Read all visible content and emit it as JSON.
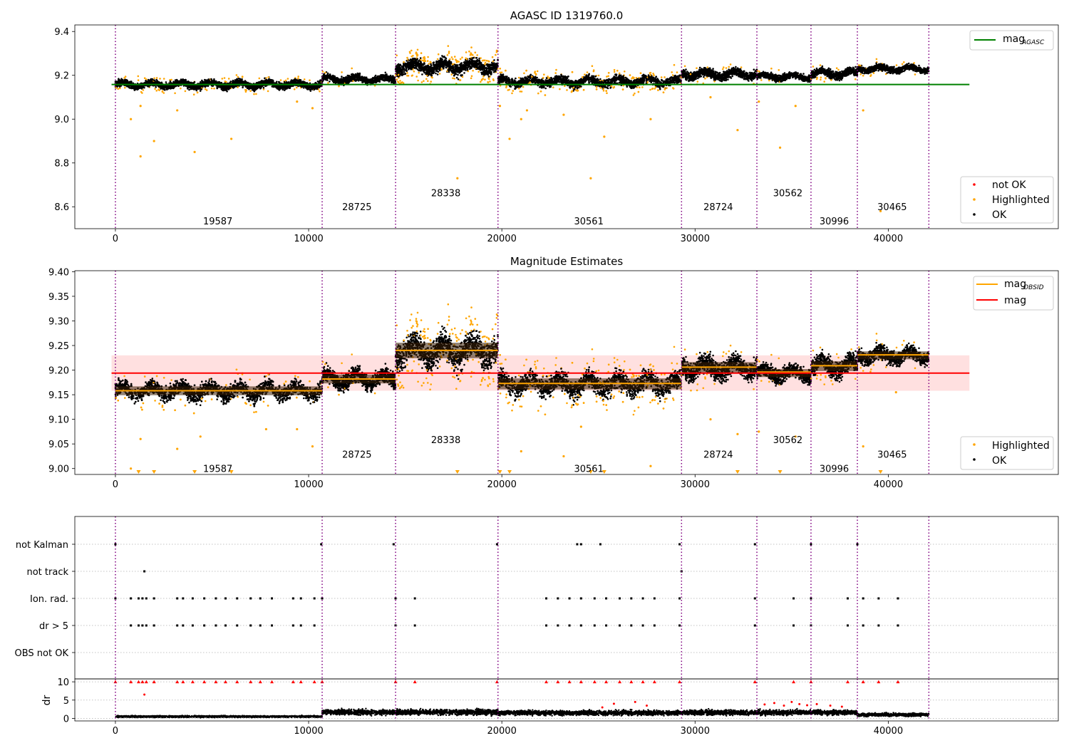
{
  "chart_data": [
    {
      "id": "p1",
      "type": "scatter",
      "title": "AGASC ID 1319760.0",
      "xlim": [
        -2100,
        48800
      ],
      "ylim": [
        8.5,
        9.43
      ],
      "xticks": [
        0,
        10000,
        20000,
        30000,
        40000
      ],
      "xtick_labels": [
        "0",
        "10000",
        "20000",
        "30000",
        "40000"
      ],
      "yticks": [
        8.6,
        8.8,
        9.0,
        9.2,
        9.4
      ],
      "ytick_labels": [
        "8.6",
        "8.8",
        "9.0",
        "9.2",
        "9.4"
      ],
      "hline": {
        "name": "mag_AGASC",
        "y": 9.158,
        "x_range": [
          -200,
          44200
        ],
        "color": "#008000"
      },
      "legend_lines": [
        {
          "label": "mag",
          "sub": "AGASC",
          "color": "#008000"
        }
      ],
      "legend_markers": [
        {
          "label": "not OK",
          "color": "#ff0000"
        },
        {
          "label": "Highlighted",
          "color": "#ffa500"
        },
        {
          "label": "OK",
          "color": "#000000"
        }
      ],
      "obsid_labels": [
        {
          "text": "19587",
          "x": 5300,
          "y": 8.535
        },
        {
          "text": "28725",
          "x": 12500,
          "y": 8.6
        },
        {
          "text": "28338",
          "x": 17100,
          "y": 8.665
        },
        {
          "text": "30561",
          "x": 24500,
          "y": 8.535
        },
        {
          "text": "28724",
          "x": 31200,
          "y": 8.6
        },
        {
          "text": "30562",
          "x": 34800,
          "y": 8.665
        },
        {
          "text": "30996",
          "x": 37200,
          "y": 8.535
        },
        {
          "text": "30465",
          "x": 40200,
          "y": 8.6
        }
      ],
      "outliers": [
        [
          800,
          9.0
        ],
        [
          1300,
          8.83
        ],
        [
          2000,
          8.9
        ],
        [
          4100,
          8.85
        ],
        [
          6000,
          8.91
        ],
        [
          1300,
          9.06
        ],
        [
          3200,
          9.04
        ],
        [
          9400,
          9.08
        ],
        [
          10200,
          9.05
        ],
        [
          17700,
          8.73
        ],
        [
          19900,
          9.06
        ],
        [
          20400,
          8.91
        ],
        [
          21000,
          9.0
        ],
        [
          24600,
          8.73
        ],
        [
          25300,
          8.92
        ],
        [
          27700,
          9.0
        ],
        [
          30800,
          9.1
        ],
        [
          32200,
          8.95
        ],
        [
          33300,
          9.08
        ],
        [
          34400,
          8.87
        ],
        [
          35200,
          9.06
        ],
        [
          38700,
          9.04
        ],
        [
          39600,
          8.58
        ],
        [
          23200,
          9.02
        ],
        [
          21300,
          9.04
        ]
      ]
    },
    {
      "id": "p2",
      "type": "scatter",
      "title": "Magnitude Estimates",
      "xlim": [
        -2100,
        48800
      ],
      "ylim": [
        8.988,
        9.402
      ],
      "xticks": [
        0,
        10000,
        20000,
        30000,
        40000
      ],
      "xtick_labels": [
        "0",
        "10000",
        "20000",
        "30000",
        "40000"
      ],
      "yticks": [
        9.0,
        9.05,
        9.1,
        9.15,
        9.2,
        9.25,
        9.3,
        9.35,
        9.4
      ],
      "ytick_labels": [
        "9.00",
        "9.05",
        "9.10",
        "9.15",
        "9.20",
        "9.25",
        "9.30",
        "9.35",
        "9.40"
      ],
      "mag": 9.194,
      "mag_band": [
        9.158,
        9.23
      ],
      "mag_x_range": [
        -200,
        44200
      ],
      "legend_lines": [
        {
          "label": "mag",
          "sub": "OBSID",
          "color": "#ffa500"
        },
        {
          "label": "mag",
          "sub": "",
          "color": "#ff0000"
        }
      ],
      "legend_markers": [
        {
          "label": "Highlighted",
          "color": "#ffa500"
        },
        {
          "label": "OK",
          "color": "#000000"
        }
      ],
      "obsid_labels": [
        {
          "text": "19587",
          "x": 5300,
          "y": 9.0
        },
        {
          "text": "28725",
          "x": 12500,
          "y": 9.029
        },
        {
          "text": "28338",
          "x": 17100,
          "y": 9.059
        },
        {
          "text": "30561",
          "x": 24500,
          "y": 9.0
        },
        {
          "text": "28724",
          "x": 31200,
          "y": 9.029
        },
        {
          "text": "30562",
          "x": 34800,
          "y": 9.059
        },
        {
          "text": "30996",
          "x": 37200,
          "y": 9.0
        },
        {
          "text": "30465",
          "x": 40200,
          "y": 9.029
        }
      ],
      "outliers": [
        [
          1300,
          9.06
        ],
        [
          3200,
          9.04
        ],
        [
          4400,
          9.065
        ],
        [
          7800,
          9.08
        ],
        [
          9400,
          9.08
        ],
        [
          10200,
          9.045
        ],
        [
          21000,
          9.035
        ],
        [
          23200,
          9.025
        ],
        [
          24100,
          9.085
        ],
        [
          27700,
          9.005
        ],
        [
          30800,
          9.1
        ],
        [
          32200,
          9.07
        ],
        [
          33300,
          9.075
        ],
        [
          35200,
          9.065
        ],
        [
          38700,
          9.045
        ],
        [
          40400,
          9.155
        ],
        [
          800,
          9.0
        ]
      ],
      "clipped_x": [
        1200,
        2000,
        4100,
        6000,
        17700,
        19900,
        20400,
        24600,
        25300,
        32200,
        34400,
        39600
      ]
    },
    {
      "id": "p3",
      "type": "flags",
      "xlim": [
        -2100,
        48800
      ],
      "categories": [
        "not Kalman",
        "not track",
        "Ion. rad.",
        "dr > 5",
        "OBS not OK"
      ],
      "flags": {
        "not Kalman": [
          0,
          10650,
          14400,
          19750,
          23900,
          24100,
          25100,
          29200,
          33100,
          36000,
          38400
        ],
        "not track": [
          1500,
          29300
        ],
        "Ion. rad.": [
          0,
          800,
          1200,
          1400,
          1600,
          2000,
          3200,
          3500,
          4000,
          4600,
          5200,
          5700,
          6300,
          7000,
          7500,
          8100,
          9200,
          9600,
          10300,
          10700,
          14500,
          15500,
          22300,
          22900,
          23500,
          24100,
          24800,
          25400,
          26100,
          26700,
          27300,
          27900,
          29200,
          33100,
          35100,
          36000,
          37900,
          38700,
          39500,
          40500
        ],
        "dr > 5": [
          800,
          1200,
          1400,
          1600,
          2000,
          3200,
          3500,
          4000,
          4600,
          5200,
          5700,
          6300,
          7000,
          7500,
          8100,
          9200,
          9600,
          10300,
          14500,
          15500,
          22300,
          22900,
          23500,
          24100,
          24800,
          25400,
          26100,
          26700,
          27300,
          27900,
          29200,
          33100,
          35100,
          36000,
          37900,
          38700,
          39500,
          40500
        ],
        "OBS not OK": []
      }
    },
    {
      "id": "p4",
      "type": "scatter",
      "ylabel": "dr",
      "xlim": [
        -2100,
        48800
      ],
      "ylim": [
        -0.7,
        10.8
      ],
      "xticks": [
        0,
        10000,
        20000,
        30000,
        40000
      ],
      "xtick_labels": [
        "0",
        "10000",
        "20000",
        "30000",
        "40000"
      ],
      "yticks": [
        0,
        5,
        10
      ],
      "ytick_labels": [
        "0",
        "5",
        "10"
      ],
      "red_points": [
        [
          0,
          10
        ],
        [
          800,
          10
        ],
        [
          1200,
          10
        ],
        [
          1400,
          10
        ],
        [
          1600,
          10
        ],
        [
          1500,
          6.5
        ],
        [
          2000,
          10
        ],
        [
          3200,
          10
        ],
        [
          3500,
          10
        ],
        [
          4000,
          10
        ],
        [
          4600,
          10
        ],
        [
          5200,
          10
        ],
        [
          5700,
          10
        ],
        [
          6300,
          10
        ],
        [
          7000,
          10
        ],
        [
          7500,
          10
        ],
        [
          8100,
          10
        ],
        [
          9200,
          10
        ],
        [
          9600,
          10
        ],
        [
          10300,
          10
        ],
        [
          10700,
          10
        ],
        [
          14500,
          10
        ],
        [
          15500,
          10
        ],
        [
          19750,
          10
        ],
        [
          22300,
          10
        ],
        [
          22900,
          10
        ],
        [
          23500,
          10
        ],
        [
          24100,
          10
        ],
        [
          24800,
          10
        ],
        [
          25400,
          10
        ],
        [
          26100,
          10
        ],
        [
          26700,
          10
        ],
        [
          27300,
          10
        ],
        [
          27900,
          10
        ],
        [
          29200,
          10
        ],
        [
          33100,
          10
        ],
        [
          35100,
          10
        ],
        [
          36000,
          10
        ],
        [
          37900,
          10
        ],
        [
          38700,
          10
        ],
        [
          39500,
          10
        ],
        [
          40500,
          10
        ],
        [
          25200,
          3.0
        ],
        [
          25800,
          4.0
        ],
        [
          26900,
          4.5
        ],
        [
          27500,
          3.5
        ],
        [
          33600,
          3.8
        ],
        [
          34100,
          4.2
        ],
        [
          34600,
          3.5
        ],
        [
          35000,
          4.5
        ],
        [
          35400,
          3.9
        ],
        [
          35800,
          3.6
        ],
        [
          36300,
          3.9
        ],
        [
          37000,
          3.5
        ],
        [
          37600,
          3.2
        ]
      ]
    }
  ],
  "obsid_boundaries": [
    0,
    10700,
    14500,
    19800,
    29300,
    33200,
    36000,
    38400,
    42100
  ],
  "segments": [
    {
      "obsid": "19587",
      "x0": 0,
      "x1": 10700,
      "mag": 9.158,
      "mean": 9.158,
      "spread": 0.02,
      "hi_frac": 0.03,
      "dr": 0.5
    },
    {
      "obsid": "28725",
      "x0": 10700,
      "x1": 14500,
      "mag": 9.182,
      "mean": 9.182,
      "spread": 0.02,
      "hi_frac": 0.01,
      "dr": 1.7
    },
    {
      "obsid": "28338",
      "x0": 14500,
      "x1": 19800,
      "mag": 9.24,
      "mean": 9.24,
      "spread": 0.035,
      "hi_frac": 0.12,
      "dr": 1.7
    },
    {
      "obsid": "30561",
      "x0": 19800,
      "x1": 29300,
      "mag": 9.173,
      "mean": 9.172,
      "spread": 0.025,
      "hi_frac": 0.08,
      "dr": 1.5
    },
    {
      "obsid": "28724",
      "x0": 29300,
      "x1": 33200,
      "mag": 9.206,
      "mean": 9.205,
      "spread": 0.025,
      "hi_frac": 0.02,
      "dr": 1.6
    },
    {
      "obsid": "30562",
      "x0": 33200,
      "x1": 36000,
      "mag": 9.196,
      "mean": 9.194,
      "spread": 0.018,
      "hi_frac": 0.01,
      "dr": 1.6
    },
    {
      "obsid": "30996",
      "x0": 36000,
      "x1": 38400,
      "mag": 9.209,
      "mean": 9.208,
      "spread": 0.022,
      "hi_frac": 0.02,
      "dr": 1.6
    },
    {
      "obsid": "30465",
      "x0": 38400,
      "x1": 42100,
      "mag": 9.231,
      "mean": 9.23,
      "spread": 0.018,
      "hi_frac": 0.02,
      "dr": 1.0
    }
  ],
  "colors": {
    "ok": "#000000",
    "highlighted": "#ffa500",
    "not_ok": "#ff0000",
    "boundary": "#800080",
    "agasc": "#008000",
    "mag": "#ff0000",
    "band": "#ffd6d6"
  }
}
